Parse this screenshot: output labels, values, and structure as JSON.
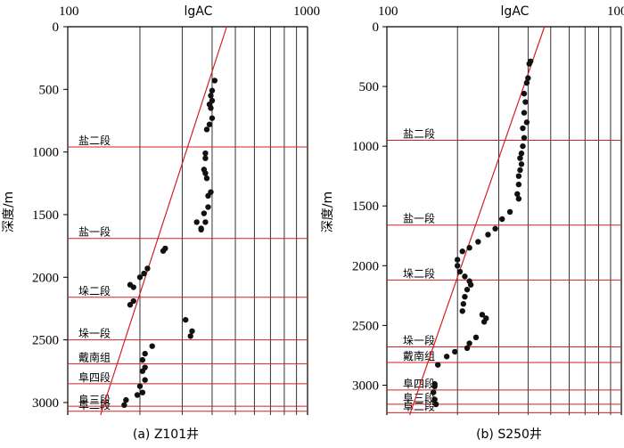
{
  "chart_data": [
    {
      "type": "scatter",
      "caption": "(a) Z101井",
      "top_left_label": "100",
      "top_center_label": "lgAC",
      "top_right_label": "1000",
      "xlim": [
        100,
        1000
      ],
      "xscale": "log",
      "ylabel": "深度/m",
      "ylim": [
        0,
        3100
      ],
      "yticks": [
        0,
        500,
        1000,
        1500,
        2000,
        2500,
        3000
      ],
      "formations": [
        {
          "name": "盐二段",
          "depth": 960
        },
        {
          "name": "盐一段",
          "depth": 1690
        },
        {
          "name": "垛二段",
          "depth": 2160
        },
        {
          "name": "垛一段",
          "depth": 2500
        },
        {
          "name": "戴南组",
          "depth": 2690
        },
        {
          "name": "阜四段",
          "depth": 2850
        },
        {
          "name": "阜三段",
          "depth": 3030
        },
        {
          "name": "阜二段",
          "depth": 3070
        }
      ],
      "trend_line": [
        {
          "x": 460,
          "y": 0
        },
        {
          "x": 137,
          "y": 3100
        }
      ],
      "points": [
        {
          "x": 410,
          "y": 430
        },
        {
          "x": 400,
          "y": 510
        },
        {
          "x": 395,
          "y": 550
        },
        {
          "x": 400,
          "y": 590
        },
        {
          "x": 390,
          "y": 620
        },
        {
          "x": 395,
          "y": 650
        },
        {
          "x": 400,
          "y": 730
        },
        {
          "x": 390,
          "y": 780
        },
        {
          "x": 380,
          "y": 820
        },
        {
          "x": 375,
          "y": 1010
        },
        {
          "x": 375,
          "y": 1050
        },
        {
          "x": 370,
          "y": 1140
        },
        {
          "x": 375,
          "y": 1170
        },
        {
          "x": 380,
          "y": 1210
        },
        {
          "x": 395,
          "y": 1320
        },
        {
          "x": 385,
          "y": 1350
        },
        {
          "x": 385,
          "y": 1440
        },
        {
          "x": 370,
          "y": 1490
        },
        {
          "x": 375,
          "y": 1560
        },
        {
          "x": 360,
          "y": 1610
        },
        {
          "x": 345,
          "y": 1560
        },
        {
          "x": 360,
          "y": 1620
        },
        {
          "x": 255,
          "y": 1770
        },
        {
          "x": 250,
          "y": 1790
        },
        {
          "x": 215,
          "y": 1930
        },
        {
          "x": 208,
          "y": 1970
        },
        {
          "x": 200,
          "y": 2000
        },
        {
          "x": 188,
          "y": 2080
        },
        {
          "x": 182,
          "y": 2060
        },
        {
          "x": 188,
          "y": 2190
        },
        {
          "x": 182,
          "y": 2220
        },
        {
          "x": 310,
          "y": 2340
        },
        {
          "x": 330,
          "y": 2430
        },
        {
          "x": 325,
          "y": 2470
        },
        {
          "x": 225,
          "y": 2550
        },
        {
          "x": 210,
          "y": 2610
        },
        {
          "x": 205,
          "y": 2660
        },
        {
          "x": 210,
          "y": 2720
        },
        {
          "x": 205,
          "y": 2750
        },
        {
          "x": 210,
          "y": 2820
        },
        {
          "x": 200,
          "y": 2870
        },
        {
          "x": 205,
          "y": 2920
        },
        {
          "x": 195,
          "y": 2940
        },
        {
          "x": 175,
          "y": 2980
        },
        {
          "x": 172,
          "y": 3020
        }
      ]
    },
    {
      "type": "scatter",
      "caption": "(b) S250井",
      "top_left_label": "100",
      "top_center_label": "lgAC",
      "top_right_label": "1000",
      "xlim": [
        100,
        1000
      ],
      "xscale": "log",
      "ylabel": "深度/m",
      "ylim": [
        0,
        3250
      ],
      "yticks": [
        0,
        500,
        1000,
        1500,
        2000,
        2500,
        3000
      ],
      "formations": [
        {
          "name": "盐二段",
          "depth": 950
        },
        {
          "name": "盐一段",
          "depth": 1660
        },
        {
          "name": "垛二段",
          "depth": 2120
        },
        {
          "name": "垛一段",
          "depth": 2680
        },
        {
          "name": "戴南组",
          "depth": 2810
        },
        {
          "name": "阜四段",
          "depth": 3040
        },
        {
          "name": "阜三段",
          "depth": 3160
        },
        {
          "name": "阜二段",
          "depth": 3230
        }
      ],
      "trend_line": [
        {
          "x": 470,
          "y": 0
        },
        {
          "x": 125,
          "y": 3250
        }
      ],
      "points": [
        {
          "x": 410,
          "y": 290
        },
        {
          "x": 405,
          "y": 310
        },
        {
          "x": 400,
          "y": 430
        },
        {
          "x": 395,
          "y": 470
        },
        {
          "x": 385,
          "y": 560
        },
        {
          "x": 390,
          "y": 630
        },
        {
          "x": 385,
          "y": 720
        },
        {
          "x": 395,
          "y": 800
        },
        {
          "x": 380,
          "y": 850
        },
        {
          "x": 385,
          "y": 930
        },
        {
          "x": 380,
          "y": 1000
        },
        {
          "x": 375,
          "y": 1060
        },
        {
          "x": 370,
          "y": 1100
        },
        {
          "x": 375,
          "y": 1150
        },
        {
          "x": 370,
          "y": 1200
        },
        {
          "x": 365,
          "y": 1250
        },
        {
          "x": 365,
          "y": 1320
        },
        {
          "x": 360,
          "y": 1400
        },
        {
          "x": 365,
          "y": 1440
        },
        {
          "x": 335,
          "y": 1550
        },
        {
          "x": 310,
          "y": 1610
        },
        {
          "x": 290,
          "y": 1690
        },
        {
          "x": 270,
          "y": 1740
        },
        {
          "x": 245,
          "y": 1800
        },
        {
          "x": 225,
          "y": 1850
        },
        {
          "x": 210,
          "y": 1880
        },
        {
          "x": 200,
          "y": 1950
        },
        {
          "x": 200,
          "y": 2000
        },
        {
          "x": 205,
          "y": 2050
        },
        {
          "x": 215,
          "y": 2090
        },
        {
          "x": 225,
          "y": 2130
        },
        {
          "x": 228,
          "y": 2160
        },
        {
          "x": 220,
          "y": 2200
        },
        {
          "x": 215,
          "y": 2260
        },
        {
          "x": 212,
          "y": 2320
        },
        {
          "x": 210,
          "y": 2380
        },
        {
          "x": 255,
          "y": 2410
        },
        {
          "x": 265,
          "y": 2440
        },
        {
          "x": 260,
          "y": 2470
        },
        {
          "x": 240,
          "y": 2600
        },
        {
          "x": 225,
          "y": 2650
        },
        {
          "x": 220,
          "y": 2690
        },
        {
          "x": 195,
          "y": 2720
        },
        {
          "x": 180,
          "y": 2760
        },
        {
          "x": 165,
          "y": 2830
        },
        {
          "x": 160,
          "y": 2990
        },
        {
          "x": 160,
          "y": 3010
        },
        {
          "x": 158,
          "y": 3060
        },
        {
          "x": 160,
          "y": 3120
        },
        {
          "x": 162,
          "y": 3160
        }
      ]
    }
  ]
}
